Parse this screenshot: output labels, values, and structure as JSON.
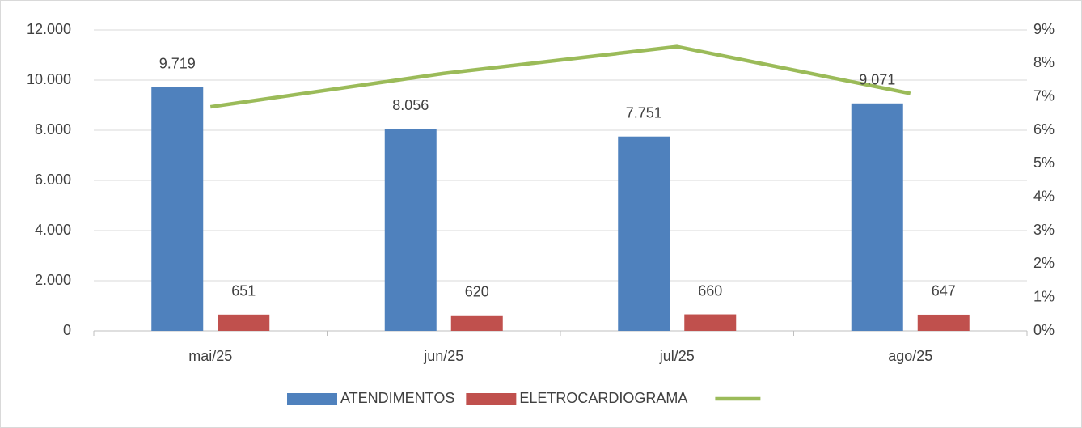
{
  "chart_data": {
    "type": "bar",
    "categories": [
      "mai/25",
      "jun/25",
      "jul/25",
      "ago/25"
    ],
    "series": [
      {
        "name": "ATENDIMENTOS",
        "color": "#4f81bd",
        "values": [
          9719,
          8056,
          7751,
          9071
        ],
        "value_labels": [
          "9.719",
          "8.056",
          "7.751",
          "9.071"
        ]
      },
      {
        "name": "ELETROCARDIOGRAMA",
        "color": "#c0504d",
        "values": [
          651,
          620,
          660,
          647
        ],
        "value_labels": [
          "651",
          "620",
          "660",
          "647"
        ]
      },
      {
        "type": "line",
        "axis": "y2",
        "color": "#9bbb59",
        "values": [
          6.7,
          7.7,
          8.5,
          7.1
        ]
      }
    ],
    "ylim": [
      0,
      12000
    ],
    "yticks": [
      0,
      {
        "value": 2000,
        "label": "2.000"
      },
      {
        "value": 4000,
        "label": "4.000"
      },
      {
        "value": 6000,
        "label": "6.000"
      },
      {
        "value": 8000,
        "label": "8.000"
      },
      {
        "value": 10000,
        "label": "10.000"
      },
      {
        "value": 12000,
        "label": "12.000"
      }
    ],
    "y2lim": [
      0,
      9
    ],
    "y2ticks": [
      {
        "value": 0,
        "label": "0%"
      },
      {
        "value": 1,
        "label": "1%"
      },
      {
        "value": 2,
        "label": "2%"
      },
      {
        "value": 3,
        "label": "3%"
      },
      {
        "value": 4,
        "label": "4%"
      },
      {
        "value": 5,
        "label": "5%"
      },
      {
        "value": 6,
        "label": "6%"
      },
      {
        "value": 7,
        "label": "7%"
      },
      {
        "value": 8,
        "label": "8%"
      },
      {
        "value": 9,
        "label": "9%"
      }
    ],
    "grid": true,
    "legend": "bottom"
  }
}
